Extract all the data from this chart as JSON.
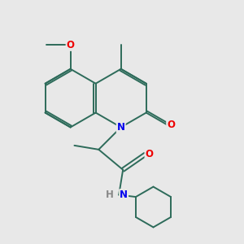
{
  "bg": "#e8e8e8",
  "bc": "#2d6b5a",
  "nc": "#0000ee",
  "oc": "#ee0000",
  "hc": "#888888",
  "lw": 1.4,
  "dbo": 0.045,
  "fs": 8.5,
  "xlim": [
    0.0,
    5.5
  ],
  "ylim": [
    0.5,
    6.5
  ]
}
